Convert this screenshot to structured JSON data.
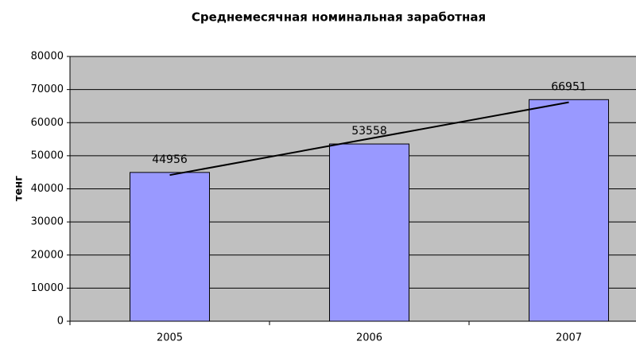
{
  "chart_data": {
    "type": "bar",
    "title": "Среднемесячная номинальная заработная",
    "y_label": "тенг",
    "categories": [
      "2005",
      "2006",
      "2007"
    ],
    "values": [
      44956,
      53558,
      66951
    ],
    "color": "#9999ff",
    "ylim": [
      0,
      80000
    ],
    "yticks": [
      0,
      10000,
      20000,
      30000,
      40000,
      50000,
      60000,
      70000,
      80000
    ],
    "grid": true,
    "trendline": true
  }
}
